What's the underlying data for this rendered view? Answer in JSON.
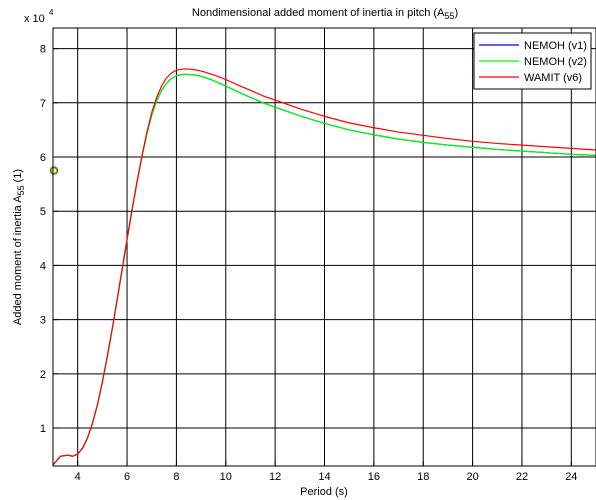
{
  "chart_data": {
    "type": "line",
    "title": {
      "text": "Nondimensional added moment of inertia in pitch (A",
      "sub": "55",
      "close": ")"
    },
    "xlabel": "Period (s)",
    "ylabel": {
      "text": "Added moment of inertia A",
      "sub": "55",
      "suffix": " (1)"
    },
    "exponent": {
      "base": "x 10",
      "power": "4"
    },
    "xlim": [
      3,
      25
    ],
    "ylim": [
      3000,
      83800
    ],
    "xticks": [
      4,
      6,
      8,
      10,
      12,
      14,
      16,
      18,
      20,
      22,
      24
    ],
    "yticks": [
      10000,
      20000,
      30000,
      40000,
      50000,
      60000,
      70000,
      80000
    ],
    "ytick_labels": [
      "1",
      "2",
      "3",
      "4",
      "5",
      "6",
      "7",
      "8"
    ],
    "grid": true,
    "legend_position": "top-right",
    "series": [
      {
        "name": "NEMOH (v1)",
        "color": "#0000ff",
        "x": [
          3.0,
          3.3,
          3.6,
          3.8,
          4.0,
          4.2,
          4.4,
          4.6,
          4.8,
          5.0,
          5.2,
          5.4,
          5.6,
          5.8,
          6.0,
          6.2,
          6.4,
          6.6,
          6.8,
          7.0,
          7.2,
          7.4,
          7.6,
          7.8,
          8.0,
          8.2,
          8.4,
          8.6,
          8.8,
          9.0,
          9.2,
          9.4,
          9.6,
          9.8,
          10.0,
          10.5,
          11.0,
          11.5,
          12.0,
          13.0,
          14.0,
          15.0,
          16.0,
          17.0,
          18.0,
          19.0,
          20.0,
          21.0,
          22.0,
          23.0,
          24.0,
          25.0
        ],
        "y": [
          3200,
          4800,
          5000,
          4800,
          5200,
          6300,
          8200,
          10900,
          14300,
          18500,
          23200,
          28300,
          33700,
          39200,
          44800,
          50200,
          55300,
          60000,
          64200,
          67700,
          70400,
          72300,
          73600,
          74500,
          75000,
          75200,
          75250,
          75200,
          75100,
          74900,
          74600,
          74300,
          73900,
          73500,
          73100,
          72000,
          71000,
          70000,
          69200,
          67600,
          66200,
          65000,
          64100,
          63300,
          62700,
          62200,
          61800,
          61400,
          61100,
          60800,
          60500,
          60300
        ]
      },
      {
        "name": "NEMOH (v2)",
        "color": "#00ff00",
        "x": [
          3.0,
          3.3,
          3.6,
          3.8,
          4.0,
          4.2,
          4.4,
          4.6,
          4.8,
          5.0,
          5.2,
          5.4,
          5.6,
          5.8,
          6.0,
          6.2,
          6.4,
          6.6,
          6.8,
          7.0,
          7.2,
          7.4,
          7.6,
          7.8,
          8.0,
          8.2,
          8.4,
          8.6,
          8.8,
          9.0,
          9.2,
          9.4,
          9.6,
          9.8,
          10.0,
          10.5,
          11.0,
          11.5,
          12.0,
          13.0,
          14.0,
          15.0,
          16.0,
          17.0,
          18.0,
          19.0,
          20.0,
          21.0,
          22.0,
          23.0,
          24.0,
          25.0
        ],
        "y": [
          3200,
          4800,
          5000,
          4800,
          5200,
          6300,
          8200,
          10900,
          14300,
          18500,
          23200,
          28300,
          33700,
          39200,
          44800,
          50200,
          55300,
          60000,
          64200,
          67700,
          70400,
          72300,
          73600,
          74500,
          75000,
          75200,
          75250,
          75200,
          75100,
          74900,
          74600,
          74300,
          73900,
          73500,
          73100,
          72000,
          71000,
          70000,
          69200,
          67600,
          66200,
          65000,
          64100,
          63300,
          62700,
          62200,
          61800,
          61400,
          61100,
          60800,
          60500,
          60300
        ]
      },
      {
        "name": "WAMIT (v6)",
        "color": "#ff0000",
        "x": [
          3.0,
          3.3,
          3.6,
          3.8,
          4.0,
          4.2,
          4.4,
          4.6,
          4.8,
          5.0,
          5.2,
          5.4,
          5.6,
          5.8,
          6.0,
          6.2,
          6.4,
          6.6,
          6.8,
          7.0,
          7.2,
          7.4,
          7.6,
          7.8,
          8.0,
          8.2,
          8.4,
          8.6,
          8.8,
          9.0,
          9.2,
          9.4,
          9.6,
          9.8,
          10.0,
          10.5,
          11.0,
          11.5,
          12.0,
          13.0,
          14.0,
          15.0,
          16.0,
          17.0,
          18.0,
          19.0,
          20.0,
          21.0,
          22.0,
          23.0,
          24.0,
          25.0
        ],
        "y": [
          3200,
          4800,
          5000,
          4800,
          5200,
          6300,
          8200,
          10900,
          14300,
          18500,
          23200,
          28300,
          33700,
          39200,
          44800,
          50200,
          55300,
          60100,
          64500,
          68200,
          71000,
          73100,
          74600,
          75500,
          76000,
          76200,
          76250,
          76200,
          76050,
          75850,
          75600,
          75300,
          75000,
          74650,
          74300,
          73250,
          72300,
          71300,
          70500,
          68900,
          67500,
          66300,
          65400,
          64600,
          64000,
          63400,
          62900,
          62500,
          62200,
          61900,
          61600,
          61300
        ]
      }
    ],
    "markers": [
      {
        "x": 3.0,
        "y": 57500,
        "color": "#ff0000"
      },
      {
        "x": 3.0,
        "y": 57500,
        "color": "#00ff00"
      }
    ]
  }
}
